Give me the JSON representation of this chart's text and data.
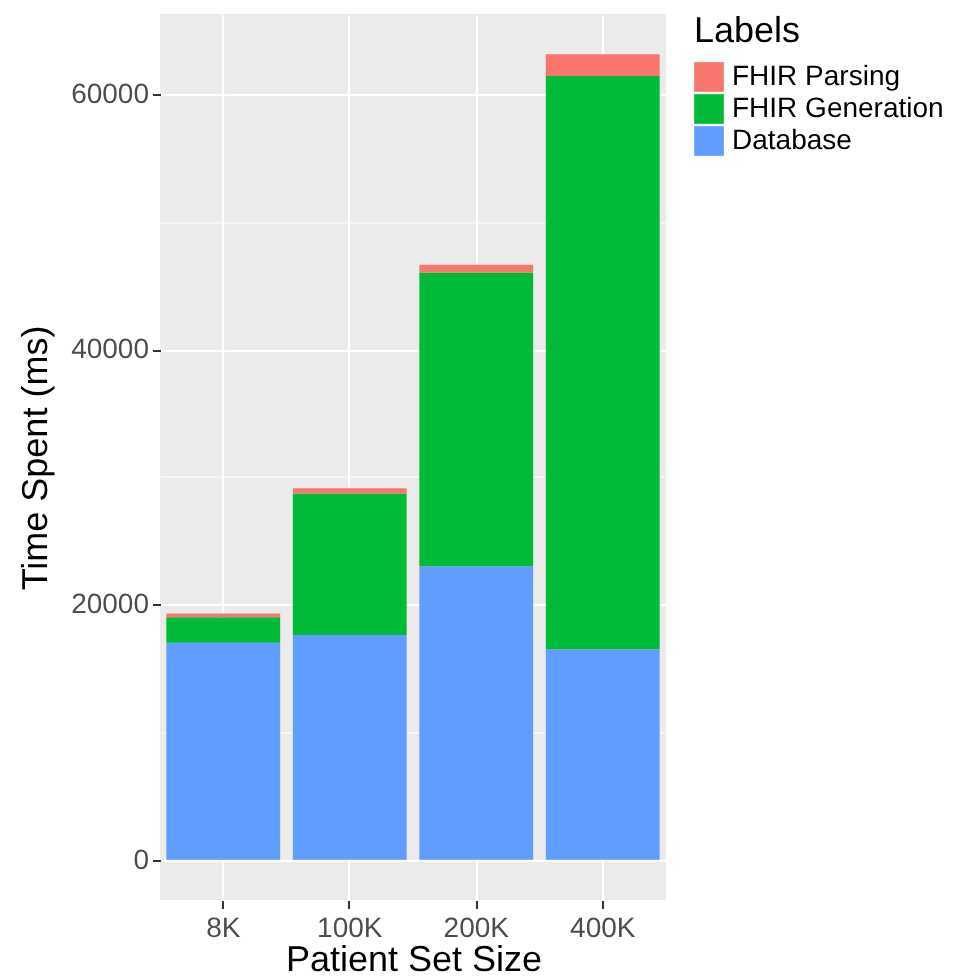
{
  "chart_data": {
    "type": "bar",
    "stacked": true,
    "xlabel": "Patient Set Size",
    "ylabel": "Time Spent (ms)",
    "legend_title": "Labels",
    "categories": [
      "8K",
      "100K",
      "200K",
      "400K"
    ],
    "series": [
      {
        "name": "Database",
        "color": "#619cff",
        "values": [
          17000,
          17600,
          23000,
          16500
        ]
      },
      {
        "name": "FHIR Generation",
        "color": "#00ba38",
        "values": [
          2000,
          11100,
          23000,
          44900
        ]
      },
      {
        "name": "FHIR Parsing",
        "color": "#f8766d",
        "values": [
          300,
          400,
          600,
          1700
        ]
      }
    ],
    "ylim": [
      -3150,
      66250
    ],
    "yticks": [
      0,
      {
        "value": 10000,
        "label": null
      },
      20000,
      {
        "value": 30000,
        "label": null
      },
      40000,
      {
        "value": 50000,
        "label": null
      },
      60000
    ],
    "grid": true,
    "legend": "right"
  }
}
